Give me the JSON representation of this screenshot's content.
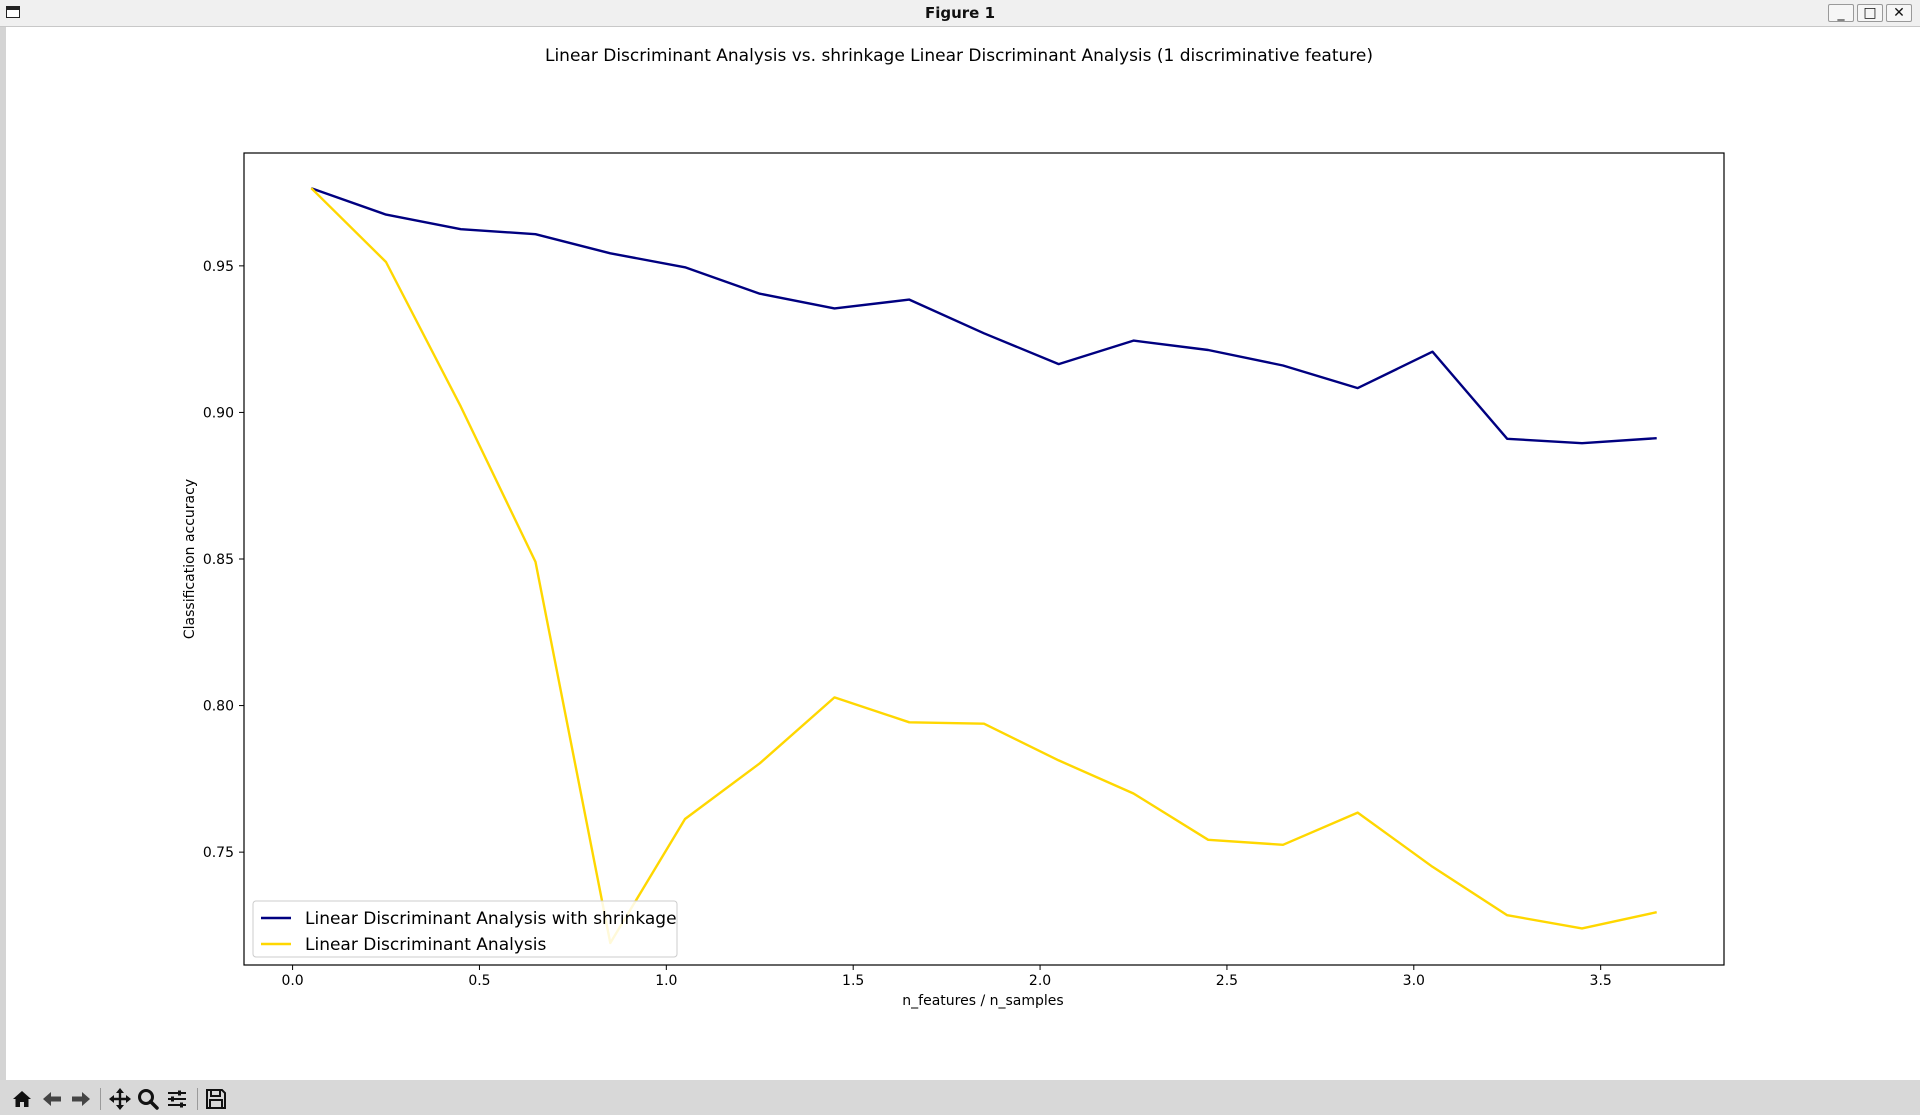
{
  "window": {
    "title": "Figure 1",
    "minimize_glyph": "_",
    "maximize_glyph": "□",
    "close_glyph": "✕"
  },
  "toolbar": {
    "buttons": [
      {
        "name": "home-icon"
      },
      {
        "name": "back-arrow-icon"
      },
      {
        "name": "forward-arrow-icon"
      },
      {
        "name": "pan-move-icon"
      },
      {
        "name": "zoom-magnifier-icon"
      },
      {
        "name": "configure-subplots-icon"
      },
      {
        "name": "save-figure-icon"
      }
    ]
  },
  "chart_data": {
    "type": "line",
    "title": "Linear Discriminant Analysis vs. shrinkage Linear Discriminant Analysis (1 discriminative feature)",
    "xlabel": "n_features / n_samples",
    "ylabel": "Classification accuracy",
    "xlim": [
      -0.13,
      3.83
    ],
    "ylim": [
      0.7115,
      0.9885
    ],
    "xticks": [
      0.0,
      0.5,
      1.0,
      1.5,
      2.0,
      2.5,
      3.0,
      3.5
    ],
    "xtick_labels": [
      "0.0",
      "0.5",
      "1.0",
      "1.5",
      "2.0",
      "2.5",
      "3.0",
      "3.5"
    ],
    "yticks": [
      0.75,
      0.8,
      0.85,
      0.9,
      0.95
    ],
    "ytick_labels": [
      "0.75",
      "0.80",
      "0.85",
      "0.90",
      "0.95"
    ],
    "grid": false,
    "legend_position": "lower-left",
    "x": [
      0.05,
      0.25,
      0.45,
      0.65,
      0.85,
      1.05,
      1.25,
      1.45,
      1.65,
      1.85,
      2.05,
      2.25,
      2.45,
      2.65,
      2.85,
      3.05,
      3.25,
      3.45,
      3.65
    ],
    "series": [
      {
        "name": "Linear Discriminant Analysis with shrinkage",
        "color": "#000080",
        "values": [
          0.9765,
          0.9675,
          0.9625,
          0.9608,
          0.9543,
          0.9495,
          0.9405,
          0.9355,
          0.9385,
          0.927,
          0.9165,
          0.9245,
          0.9213,
          0.916,
          0.9083,
          0.9207,
          0.891,
          0.8895,
          0.8912
        ]
      },
      {
        "name": "Linear Discriminant Analysis",
        "color": "#ffd700",
        "values": [
          0.9765,
          0.9513,
          0.902,
          0.849,
          0.719,
          0.7613,
          0.7803,
          0.8028,
          0.7943,
          0.7938,
          0.7813,
          0.77,
          0.7542,
          0.7525,
          0.7635,
          0.745,
          0.7285,
          0.724,
          0.7295
        ]
      }
    ]
  }
}
